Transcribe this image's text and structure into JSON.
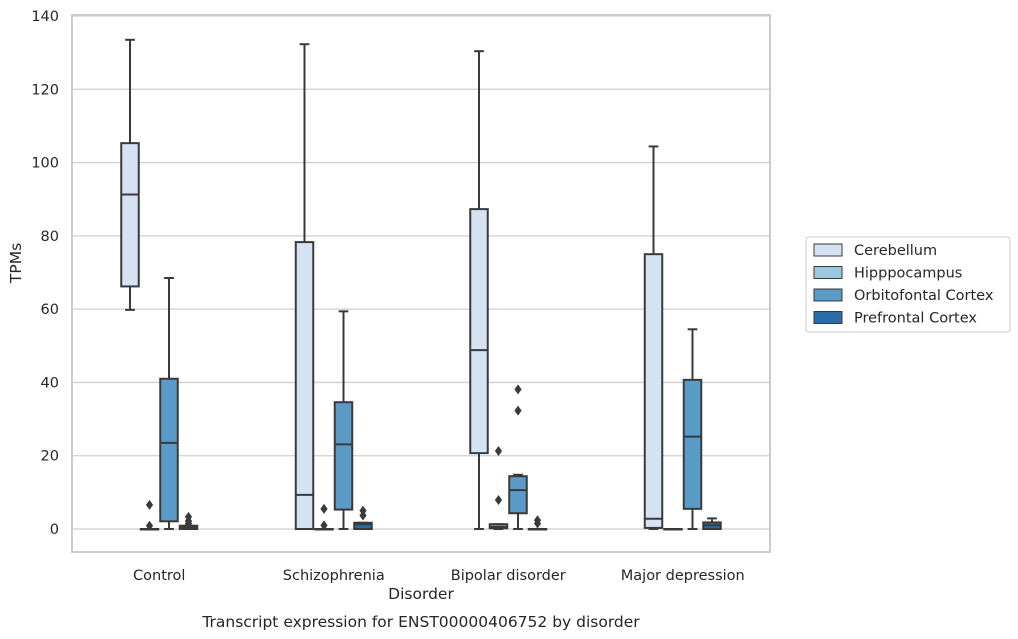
{
  "chart_data": {
    "type": "boxplot",
    "caption": "Transcript expression for ENST00000406752 by disorder",
    "xlabel": "Disorder",
    "ylabel": "TPMs",
    "ylim": [
      -6.3,
      140
    ],
    "yticks": [
      0,
      20,
      40,
      60,
      80,
      100,
      120,
      140
    ],
    "grid": "horizontal",
    "legend_position": "right",
    "categories": [
      "Control",
      "Schizophrenia",
      "Bipolar disorder",
      "Major depression"
    ],
    "series": [
      {
        "name": "Cerebellum",
        "color": "#d5e2f1",
        "boxes": [
          {
            "whislo": 59.8,
            "q1": 66.2,
            "med": 91.3,
            "q3": 105.3,
            "whishi": 133.5,
            "fliers": []
          },
          {
            "whislo": 0,
            "q1": 0,
            "med": 9.3,
            "q3": 78.3,
            "whishi": 132.3,
            "fliers": []
          },
          {
            "whislo": 0,
            "q1": 20.7,
            "med": 48.8,
            "q3": 87.3,
            "whishi": 130.4,
            "fliers": []
          },
          {
            "whislo": 0,
            "q1": 0.3,
            "med": 2.8,
            "q3": 75.0,
            "whishi": 104.4,
            "fliers": []
          }
        ]
      },
      {
        "name": "Hipppocampus",
        "color": "#9ac8e0",
        "boxes": [
          {
            "whislo": 0,
            "q1": 0,
            "med": 0,
            "q3": 0,
            "whishi": 0,
            "fliers": [
              6.6,
              0.9
            ]
          },
          {
            "whislo": 0,
            "q1": 0,
            "med": 0,
            "q3": 0,
            "whishi": 0,
            "fliers": [
              5.5,
              1.0
            ]
          },
          {
            "whislo": 0,
            "q1": 0.2,
            "med": 0.6,
            "q3": 1.3,
            "whishi": 1.3,
            "fliers": [
              21.3,
              7.9
            ]
          },
          {
            "whislo": 0,
            "q1": 0,
            "med": 0,
            "q3": 0,
            "whishi": 0,
            "fliers": []
          }
        ]
      },
      {
        "name": "Orbitofontal Cortex",
        "color": "#5b9bc8",
        "boxes": [
          {
            "whislo": 0,
            "q1": 2.1,
            "med": 23.5,
            "q3": 41.0,
            "whishi": 68.5,
            "fliers": []
          },
          {
            "whislo": 0,
            "q1": 5.3,
            "med": 23.1,
            "q3": 34.6,
            "whishi": 59.4,
            "fliers": []
          },
          {
            "whislo": 0,
            "q1": 4.3,
            "med": 10.6,
            "q3": 14.4,
            "whishi": 14.8,
            "fliers": [
              38.1,
              32.3
            ]
          },
          {
            "whislo": 0,
            "q1": 5.5,
            "med": 25.2,
            "q3": 40.7,
            "whishi": 54.5,
            "fliers": []
          }
        ]
      },
      {
        "name": "Prefrontal Cortex",
        "color": "#2a6cab",
        "boxes": [
          {
            "whislo": 0,
            "q1": 0,
            "med": 0.4,
            "q3": 0.9,
            "whishi": 0.9,
            "fliers": [
              3.3,
              2.2,
              1.5,
              1.0
            ]
          },
          {
            "whislo": 0,
            "q1": 0,
            "med": 1.3,
            "q3": 1.7,
            "whishi": 1.7,
            "fliers": [
              5.0,
              3.7
            ]
          },
          {
            "whislo": 0,
            "q1": 0,
            "med": 0,
            "q3": 0,
            "whishi": 0,
            "fliers": [
              2.4,
              1.5
            ]
          },
          {
            "whislo": 0,
            "q1": 0,
            "med": 1.0,
            "q3": 1.8,
            "whishi": 2.9,
            "fliers": []
          }
        ]
      }
    ]
  },
  "colors": {
    "line": "#3a3a3a",
    "grid": "#cfcfcf",
    "frame": "#cccccc"
  }
}
